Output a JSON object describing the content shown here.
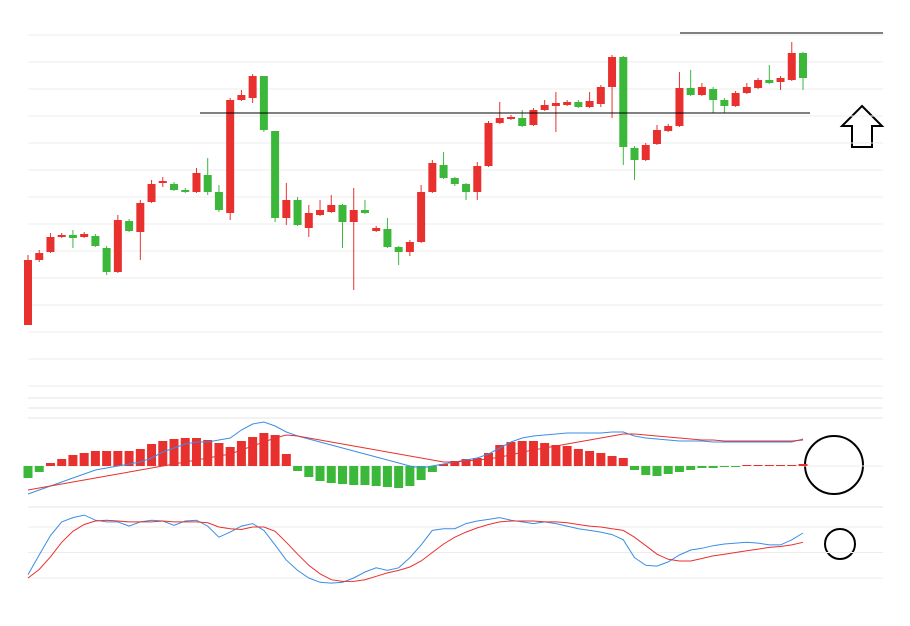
{
  "chart_data": [
    {
      "type": "candlestick",
      "open": [
        75,
        140,
        148,
        163,
        165,
        163,
        164,
        152,
        128,
        179,
        168,
        198,
        217,
        216,
        210,
        208,
        225,
        208,
        187,
        300,
        302,
        324,
        269,
        182,
        200,
        172,
        185,
        188,
        195,
        178,
        190,
        169,
        171,
        153,
        148,
        158,
        208,
        235,
        222,
        216,
        208,
        234,
        277,
        281,
        282,
        275,
        290,
        294,
        295,
        298,
        293,
        296,
        313,
        343,
        252,
        240,
        256,
        269,
        274,
        312,
        305,
        311,
        300,
        294,
        307,
        312,
        320,
        318,
        320,
        347
      ],
      "high": [
        145,
        150,
        167,
        167,
        170,
        168,
        166,
        154,
        185,
        181,
        200,
        220,
        223,
        218,
        212,
        232,
        242,
        215,
        302,
        310,
        326,
        324,
        269,
        217,
        203,
        195,
        200,
        205,
        196,
        212,
        200,
        174,
        182,
        154,
        160,
        215,
        240,
        248,
        223,
        217,
        238,
        279,
        298,
        285,
        290,
        292,
        300,
        308,
        300,
        300,
        308,
        315,
        345,
        344,
        254,
        257,
        275,
        276,
        328,
        330,
        317,
        313,
        302,
        309,
        317,
        322,
        335,
        324,
        358,
        348
      ],
      "low": [
        75,
        138,
        147,
        162,
        152,
        162,
        153,
        125,
        127,
        168,
        140,
        197,
        213,
        209,
        207,
        207,
        205,
        188,
        180,
        299,
        297,
        268,
        178,
        175,
        174,
        163,
        184,
        187,
        152,
        110,
        186,
        168,
        152,
        135,
        144,
        157,
        207,
        221,
        214,
        200,
        200,
        233,
        276,
        280,
        273,
        274,
        289,
        268,
        294,
        292,
        292,
        293,
        282,
        235,
        220,
        239,
        255,
        268,
        273,
        304,
        304,
        287,
        287,
        293,
        306,
        311,
        316,
        310,
        319,
        310
      ],
      "close": [
        140,
        147,
        163,
        165,
        162,
        166,
        154,
        128,
        180,
        169,
        197,
        216,
        219,
        210,
        208,
        227,
        208,
        190,
        300,
        305,
        324,
        270,
        182,
        200,
        175,
        187,
        190,
        195,
        178,
        190,
        187,
        172,
        153,
        148,
        158,
        208,
        237,
        222,
        216,
        208,
        234,
        277,
        282,
        283,
        274,
        290,
        295,
        297,
        298,
        293,
        299,
        313,
        343,
        253,
        240,
        255,
        270,
        274,
        312,
        305,
        313,
        300,
        294,
        307,
        313,
        320,
        317,
        322,
        347,
        322
      ],
      "up_color": "#e8312f",
      "down_color": "#3bb83a",
      "levels": [
        287,
        367
      ],
      "ylim": [
        5,
        370
      ],
      "yticks": [
        14,
        41,
        68,
        95,
        122,
        149,
        176,
        203,
        230,
        257,
        284,
        311,
        338,
        365
      ],
      "grid": true
    },
    {
      "type": "macd",
      "histogram": {
        "values": [
          -12,
          -6,
          3,
          7,
          11,
          13,
          15,
          15,
          15,
          15,
          17,
          22,
          25,
          27,
          28,
          28,
          26,
          23,
          19,
          25,
          29,
          33,
          31,
          12,
          -5,
          -11,
          -15,
          -17,
          -18,
          -19,
          -19,
          -20,
          -21,
          -22,
          -20,
          -14,
          -6,
          2,
          5,
          7,
          8,
          13,
          21,
          24,
          25,
          25,
          23,
          21,
          20,
          17,
          15,
          13,
          10,
          8,
          -4,
          -9,
          -10,
          -8,
          -6,
          -4,
          -2,
          -2,
          -1,
          -1,
          1,
          1,
          1,
          1,
          1,
          2
        ],
        "up_color": "#e8312f",
        "down_color": "#3bb83a"
      },
      "series": [
        {
          "color": "#3a8ee6",
          "values": [
            -28,
            -24,
            -20,
            -16,
            -12,
            -8,
            -4,
            -2,
            0,
            2,
            4,
            8,
            14,
            18,
            22,
            24,
            24,
            26,
            28,
            36,
            42,
            44,
            40,
            34,
            30,
            27,
            24,
            21,
            18,
            15,
            12,
            9,
            6,
            3,
            0,
            -2,
            0,
            2,
            4,
            6,
            8,
            12,
            18,
            24,
            28,
            30,
            31,
            32,
            33,
            33,
            33,
            33,
            34,
            34,
            30,
            28,
            27,
            26,
            25,
            25,
            25,
            24,
            24,
            24,
            24,
            24,
            24,
            24,
            24,
            27
          ]
        },
        {
          "color": "#e8312f",
          "values": [
            -24,
            -22,
            -20,
            -18,
            -16,
            -14,
            -12,
            -10,
            -8,
            -6,
            -4,
            -2,
            0,
            2,
            4,
            6,
            8,
            10,
            12,
            16,
            20,
            24,
            28,
            31,
            30,
            28,
            26,
            24,
            22,
            20,
            18,
            16,
            14,
            12,
            10,
            8,
            6,
            4,
            4,
            5,
            6,
            7,
            9,
            11,
            14,
            16,
            18,
            20,
            22,
            24,
            26,
            28,
            30,
            32,
            32,
            31,
            30,
            29,
            28,
            27,
            26,
            26,
            25,
            25,
            25,
            25,
            25,
            25,
            25,
            26
          ]
        }
      ],
      "ylim": [
        -39,
        61
      ],
      "yticks": [
        0
      ],
      "grid": true
    },
    {
      "type": "line",
      "series": [
        {
          "color": "#3a8ee6",
          "values": [
            24,
            47,
            70,
            86,
            91,
            94,
            88,
            86,
            86,
            81,
            86,
            88,
            87,
            82,
            87,
            88,
            81,
            68,
            74,
            81,
            84,
            76,
            59,
            41,
            29,
            20,
            15,
            14,
            15,
            20,
            27,
            32,
            29,
            32,
            44,
            59,
            76,
            78,
            78,
            84,
            87,
            89,
            91,
            88,
            86,
            84,
            86,
            84,
            81,
            78,
            76,
            74,
            71,
            65,
            44,
            35,
            34,
            39,
            47,
            53,
            55,
            58,
            60,
            61,
            62,
            61,
            59,
            59,
            65,
            73
          ]
        },
        {
          "color": "#e8312f",
          "values": [
            20,
            30,
            45,
            62,
            75,
            83,
            87,
            88,
            87,
            86,
            86,
            86,
            87,
            86,
            86,
            86,
            85,
            80,
            78,
            77,
            80,
            80,
            75,
            62,
            48,
            35,
            25,
            18,
            16,
            16,
            18,
            22,
            26,
            29,
            33,
            40,
            50,
            60,
            68,
            74,
            79,
            83,
            86,
            87,
            87,
            87,
            86,
            86,
            85,
            83,
            81,
            80,
            78,
            76,
            68,
            58,
            48,
            42,
            40,
            40,
            43,
            46,
            48,
            50,
            52,
            54,
            56,
            57,
            59,
            62
          ]
        }
      ],
      "ylim": [
        0,
        100
      ],
      "yticks": [
        20,
        50,
        80
      ],
      "grid": true
    }
  ]
}
